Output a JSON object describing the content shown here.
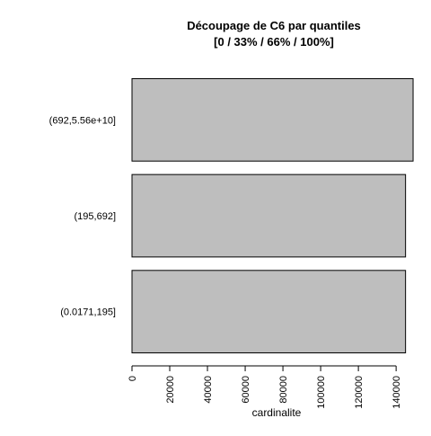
{
  "chart_data": {
    "type": "bar",
    "orientation": "horizontal",
    "title": "Découpage de C6 par quantiles",
    "subtitle": "[0 / 33% / 66% / 100%]",
    "xlabel": "cardinalite",
    "ylabel": "",
    "categories": [
      "(0.0171,195]",
      "(195,692]",
      "(692,5.56e+10]"
    ],
    "values": [
      145000,
      145000,
      149000
    ],
    "xlim": [
      0,
      150000
    ],
    "x_ticks": [
      0,
      20000,
      40000,
      60000,
      80000,
      100000,
      120000,
      140000
    ],
    "x_tick_labels": [
      "0",
      "20000",
      "40000",
      "60000",
      "80000",
      "100000",
      "120000",
      "140000"
    ],
    "bar_color": "#bebebe",
    "bar_border_color": "#000000",
    "grid": false,
    "legend": "none"
  }
}
